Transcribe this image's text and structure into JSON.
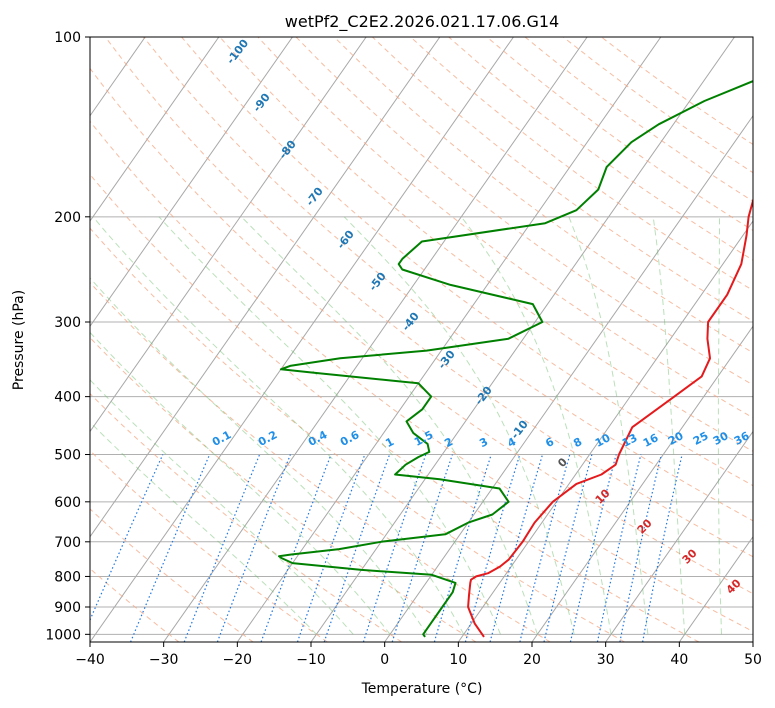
{
  "chart_data": {
    "type": "line",
    "title": "wetPf2_C2E2.2026.021.17.06.G14",
    "xlabel": "Temperature (°C)",
    "ylabel": "Pressure (hPa)",
    "xlim": [
      -40,
      50
    ],
    "ylim": [
      1030,
      100
    ],
    "y_scale": "log",
    "grid": true,
    "x_ticks": [
      "−40",
      "−30",
      "−20",
      "−10",
      "0",
      "10",
      "20",
      "30",
      "40",
      "50"
    ],
    "x_tick_values": [
      -40,
      -30,
      -20,
      -10,
      0,
      10,
      20,
      30,
      40,
      50
    ],
    "y_ticks": [
      "100",
      "200",
      "300",
      "400",
      "500",
      "600",
      "700",
      "800",
      "900",
      "1000"
    ],
    "y_tick_values": [
      100,
      200,
      300,
      400,
      500,
      600,
      700,
      800,
      900,
      1000
    ],
    "series": [
      {
        "color": "#e41a1c",
        "pressure": [
          1010,
          960,
          900,
          860,
          820,
          810,
          800,
          790,
          770,
          750,
          700,
          650,
          600,
          560,
          540,
          520,
          500,
          450,
          400,
          370,
          345,
          320,
          300,
          270,
          240,
          215,
          200,
          175,
          150,
          130,
          115,
          105,
          100
        ],
        "temperature": [
          13,
          10.5,
          8,
          7,
          6,
          5.8,
          6.2,
          7.5,
          8.5,
          9,
          9.2,
          9,
          9.5,
          11,
          13.5,
          14.5,
          14,
          13.2,
          16,
          17.8,
          17.2,
          15,
          13.5,
          13.5,
          12.5,
          10.5,
          9,
          7,
          5.5,
          5.5,
          5.5,
          6,
          7
        ]
      },
      {
        "color": "#008000",
        "pressure": [
          1010,
          1000,
          960,
          900,
          850,
          820,
          795,
          780,
          760,
          745,
          740,
          735,
          720,
          700,
          680,
          650,
          630,
          600,
          570,
          550,
          540,
          520,
          505,
          495,
          480,
          460,
          440,
          420,
          400,
          380,
          365,
          360,
          355,
          345,
          335,
          320,
          300,
          280,
          260,
          245,
          240,
          235,
          220,
          205,
          195,
          180,
          165,
          150,
          140,
          128,
          118,
          110,
          105,
          100
        ],
        "temperature": [
          5,
          4.5,
          4.5,
          4.5,
          4.5,
          4,
          0,
          -10,
          -20,
          -22,
          -22.5,
          -21,
          -15,
          -10,
          -2,
          0,
          2.5,
          3.5,
          1,
          -8,
          -14.5,
          -14,
          -13,
          -12,
          -13,
          -16,
          -18,
          -17,
          -17,
          -20,
          -35,
          -40,
          -39,
          -33,
          -22,
          -12,
          -9,
          -12,
          -25,
          -33,
          -34,
          -34,
          -33,
          -18,
          -15,
          -14,
          -15,
          -14,
          -12,
          -8,
          -3,
          -2,
          -2,
          -1.5
        ]
      }
    ],
    "annotations": {
      "dry_adiabats": [
        "-100",
        "-90",
        "-80",
        "-70",
        "-60",
        "-50",
        "-40",
        "-30",
        "-20",
        "-10"
      ],
      "mixing_ratios": [
        "0.1",
        "0.2",
        "0.4",
        "0.6",
        "1",
        "1.5",
        "2",
        "3",
        "4",
        "6",
        "8",
        "10",
        "13",
        "16",
        "20",
        "25",
        "30",
        "36"
      ],
      "isotherms": [
        "0",
        "10",
        "20",
        "30",
        "40"
      ]
    }
  }
}
